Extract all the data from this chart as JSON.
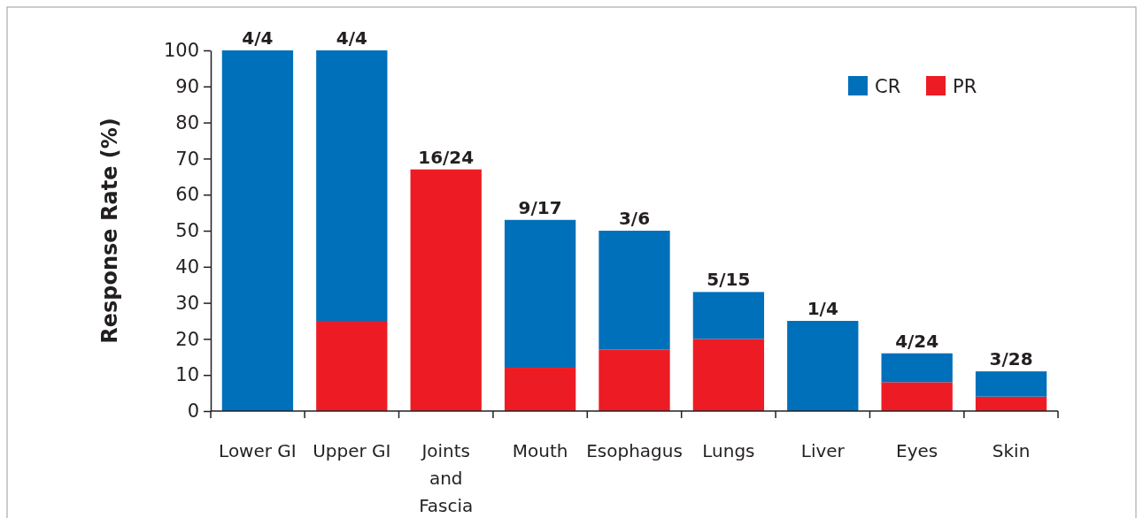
{
  "chart_data": {
    "type": "bar",
    "stacked": true,
    "ylabel": "Response Rate (%)",
    "categories": [
      "Lower GI",
      "Upper GI",
      "Joints and Fascia",
      "Mouth",
      "Esophagus",
      "Lungs",
      "Liver",
      "Eyes",
      "Skin"
    ],
    "series": [
      {
        "name": "PR",
        "color": "#ed1c24",
        "values": [
          0,
          25,
          67,
          12,
          17,
          20,
          0,
          8,
          4
        ]
      },
      {
        "name": "CR",
        "color": "#0070ba",
        "values": [
          100,
          75,
          0,
          41,
          33,
          13,
          25,
          8,
          7
        ]
      }
    ],
    "annotations": [
      {
        "text": "4/4",
        "x": "Lower GI",
        "y": 100
      },
      {
        "text": "4/4",
        "x": "Upper GI",
        "y": 100
      },
      {
        "text": "16/24",
        "x": "Joints and Fascia",
        "y": 67
      },
      {
        "text": "9/17",
        "x": "Mouth",
        "y": 53
      },
      {
        "text": "3/6",
        "x": "Esophagus",
        "y": 50
      },
      {
        "text": "5/15",
        "x": "Lungs",
        "y": 33
      },
      {
        "text": "1/4",
        "x": "Liver",
        "y": 25
      },
      {
        "text": "4/24",
        "x": "Eyes",
        "y": 16
      },
      {
        "text": "3/28",
        "x": "Skin",
        "y": 11
      }
    ],
    "ylim": [
      0,
      100
    ],
    "yticks": [
      0,
      10,
      20,
      30,
      40,
      50,
      60,
      70,
      80,
      90,
      100
    ],
    "grid": false,
    "legend": "top right"
  }
}
